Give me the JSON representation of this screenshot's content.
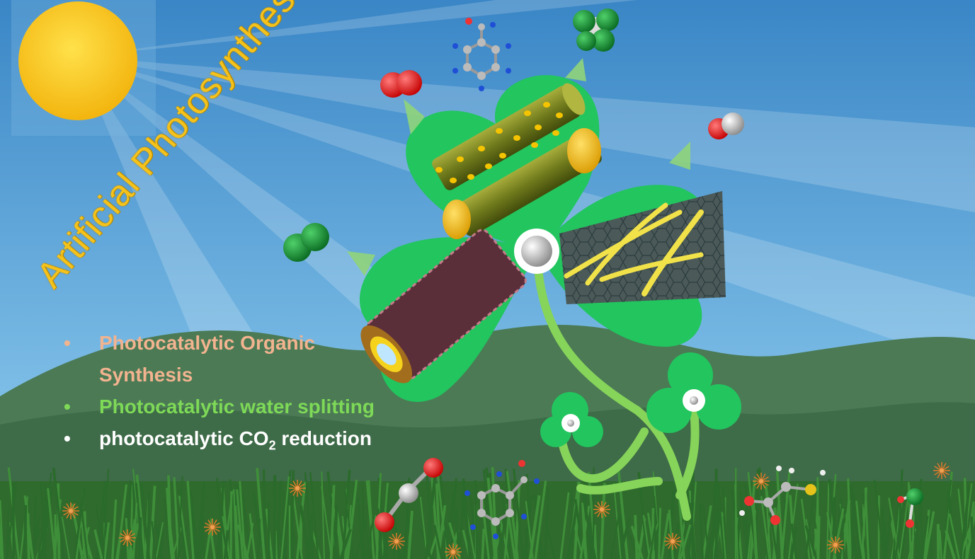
{
  "title": "Artificial Photosynthesis",
  "bullets": [
    {
      "text": "Photocatalytic Organic Synthesis",
      "color": "#f2b38f"
    },
    {
      "text": "Photocatalytic water splitting",
      "color": "#7ed957"
    },
    {
      "text_before": "photocatalytic CO",
      "subscript": "2",
      "text_after": " reduction",
      "color": "#ffffff"
    }
  ],
  "colors": {
    "sky_top": "#3a86c6",
    "sky_bottom": "#9fd2ee",
    "hill_dark": "#3f6e4c",
    "clover": "#22c55e",
    "sun": "#f6c417"
  }
}
